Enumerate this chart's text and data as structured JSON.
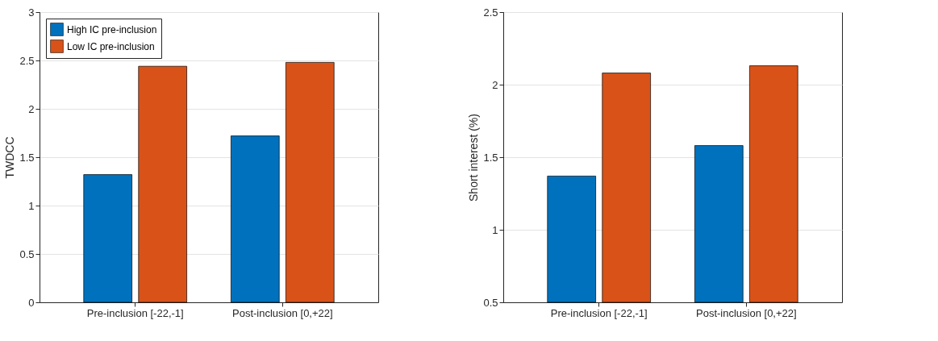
{
  "chart_data": [
    {
      "type": "bar",
      "ylabel": "TWDCC",
      "categories": [
        "Pre-inclusion [-22,-1]",
        "Post-inclusion [0,+22]"
      ],
      "series": [
        {
          "name": "High IC pre-inclusion",
          "color": "#0072bd",
          "values": [
            1.32,
            1.72
          ]
        },
        {
          "name": "Low IC pre-inclusion",
          "color": "#d95319",
          "values": [
            2.44,
            2.48
          ]
        }
      ],
      "ylim": [
        0,
        3
      ],
      "yticks": [
        0,
        0.5,
        1,
        1.5,
        2,
        2.5,
        3
      ],
      "grid": "y",
      "legend": "top left"
    },
    {
      "type": "bar",
      "ylabel": "Short interest (%)",
      "categories": [
        "Pre-inclusion [-22,-1]",
        "Post-inclusion [0,+22]"
      ],
      "series": [
        {
          "name": "High IC pre-inclusion",
          "color": "#0072bd",
          "values": [
            1.37,
            1.58
          ]
        },
        {
          "name": "Low IC pre-inclusion",
          "color": "#d95319",
          "values": [
            2.08,
            2.13
          ]
        }
      ],
      "ylim": [
        0.5,
        2.5
      ],
      "yticks": [
        0.5,
        1,
        1.5,
        2,
        2.5
      ],
      "grid": "y",
      "legend": "top left"
    }
  ]
}
